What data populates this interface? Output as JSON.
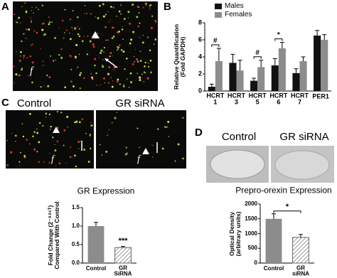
{
  "panels": {
    "a": {
      "letter": "A",
      "marks": [
        "f"
      ]
    },
    "b": {
      "letter": "B"
    },
    "c": {
      "letter": "C",
      "images": [
        "Control",
        "GR siRNA"
      ],
      "marks": [
        "f",
        "f"
      ]
    },
    "d": {
      "letter": "D",
      "images": [
        "Control",
        "GR siRNA"
      ]
    }
  },
  "chart_data": [
    {
      "type": "bar",
      "y_label": "Relative Quantification\n(Fold GAPDH)",
      "categories": [
        "HCRT\n1",
        "HCRT\n3",
        "HCRT\n5",
        "HCRT\n6",
        "HCRT\n7",
        "PER1"
      ],
      "series": [
        {
          "name": "Males",
          "color": "#111111",
          "values": [
            0.5,
            3.3,
            1.2,
            3.0,
            2.1,
            6.5
          ],
          "errors": [
            0.3,
            1.0,
            0.3,
            0.8,
            0.5,
            0.6
          ]
        },
        {
          "name": "Females",
          "color": "#8c8c8c",
          "values": [
            3.5,
            2.4,
            2.8,
            5.0,
            3.5,
            6.0
          ],
          "errors": [
            1.5,
            1.2,
            0.8,
            0.7,
            0.5,
            0.6
          ]
        }
      ],
      "annotations": [
        "#",
        null,
        "#",
        "*",
        null,
        null
      ],
      "ylim": [
        0,
        8
      ],
      "yticks": [
        0,
        2,
        4,
        6,
        8
      ],
      "legend": "top-left"
    },
    {
      "type": "bar",
      "title": "GR Expression",
      "y_label": "Fold Change (2⁻ᐞᐞᶜᵀ)\nCompared With Control",
      "categories": [
        "Control",
        "GR\nSiRNA"
      ],
      "series": [
        {
          "color": "#8c8c8c",
          "values": [
            1.0,
            0.42
          ],
          "errors": [
            0.1,
            0.03
          ],
          "hatch": [
            false,
            true
          ]
        }
      ],
      "annotation": "***",
      "ylim": [
        0,
        1.5
      ],
      "yticks": [
        {
          "value": 0,
          "label": "0.0"
        },
        0.5,
        {
          "value": 1,
          "label": "1.0"
        },
        1.5
      ]
    },
    {
      "type": "bar",
      "title": "Prepro-orexin Expression",
      "y_label": "Optical Density\n(arbitrary units)",
      "categories": [
        "Control",
        "GR\nsiRNA"
      ],
      "series": [
        {
          "color": "#8c8c8c",
          "values": [
            1500,
            870
          ],
          "errors": [
            170,
            100
          ],
          "hatch": [
            false,
            true
          ]
        }
      ],
      "annotation": "*",
      "ylim": [
        0,
        2000
      ],
      "yticks": [
        0,
        500,
        1000,
        1500,
        2000
      ]
    }
  ]
}
